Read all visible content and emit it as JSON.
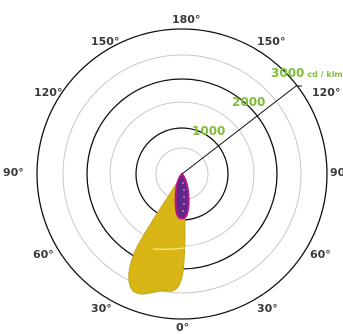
{
  "angle_labels": {
    "top": "180°",
    "upper_left": "150°",
    "upper_right": "150°",
    "mid_upper_left": "120°",
    "mid_upper_right": "120°",
    "left": "90°",
    "right": "90°",
    "mid_lower_left": "60°",
    "mid_lower_right": "60°",
    "lower_left": "30°",
    "lower_right": "30°",
    "bottom": "0°"
  },
  "radial_labels": {
    "r1000": "1000",
    "r2000": "2000",
    "r3000": "3000",
    "unit": "cd / klm"
  },
  "colors": {
    "ring_dark": "#111111",
    "ring_light": "#c9c9c9",
    "label_green": "#7fbd3a",
    "lobe_yellow": "#d8b616",
    "lobe_purple": "#5b2a86",
    "lobe_magenta": "#b7148a"
  }
}
